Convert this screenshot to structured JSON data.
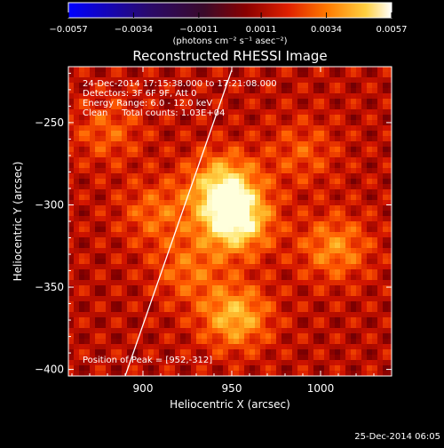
{
  "chart_data": {
    "type": "heatmap",
    "title": "Reconstructed RHESSI Image",
    "xlabel": "Heliocentric X (arcsec)",
    "ylabel": "Heliocentric Y (arcsec)",
    "xlim": [
      858,
      1040
    ],
    "ylim": [
      -404,
      -216
    ],
    "x_ticks": [
      900,
      950,
      1000
    ],
    "x_tick_labels": [
      "900",
      "950",
      "1000"
    ],
    "y_ticks": [
      -250,
      -300,
      -350,
      -400
    ],
    "y_tick_labels": [
      "−250",
      "−300",
      "−350",
      "−400"
    ],
    "colorbar": {
      "range": [
        -0.0057,
        0.0057
      ],
      "tick_labels": [
        "−0.0057",
        "−0.0034",
        "−0.0011",
        "0.0011",
        "0.0034",
        "0.0057"
      ],
      "unit_label": "(photons cm⁻² s⁻¹ asec⁻²)",
      "colormap": [
        "#0000ff",
        "#2a0a6a",
        "#3a0a2a",
        "#8a0000",
        "#e02000",
        "#ff7a00",
        "#ffd040",
        "#ffffff"
      ]
    },
    "annotations": [
      "24-Dec-2014 17:15:38.000 to 17:21:08.000",
      "Detectors: 3F 6F 9F, Att 0",
      "Energy Range: 6.0 - 12.0 keV",
      "Clean     Total counts: 1.03E+04"
    ],
    "peak_text": "Position of Peak = [952,-312]",
    "peak_position": [
      952,
      -312
    ],
    "sources": [
      {
        "x": 952,
        "y": -310,
        "value": 0.0057
      },
      {
        "x": 945,
        "y": -288,
        "value": 0.0045
      },
      {
        "x": 952,
        "y": -368,
        "value": 0.004
      },
      {
        "x": 1008,
        "y": -326,
        "value": 0.003
      },
      {
        "x": 907,
        "y": -305,
        "value": 0.0022
      },
      {
        "x": 925,
        "y": -340,
        "value": 0.0022
      },
      {
        "x": 880,
        "y": -255,
        "value": 0.002
      },
      {
        "x": 990,
        "y": -268,
        "value": 0.0018
      }
    ],
    "limb_line": [
      [
        890,
        -404
      ],
      [
        950,
        -218
      ]
    ]
  },
  "footer": {
    "timestamp": "25-Dec-2014 06:05"
  }
}
